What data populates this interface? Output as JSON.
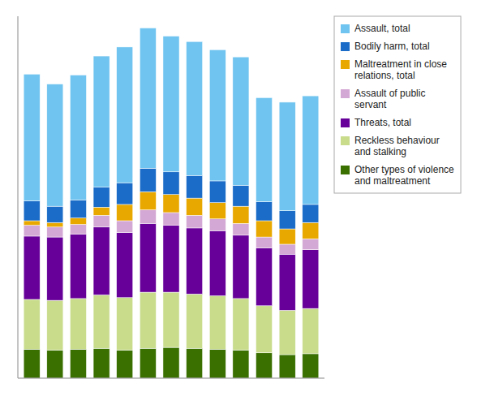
{
  "chart_data": {
    "type": "bar",
    "stacked": true,
    "categories": [
      null,
      null,
      null,
      null,
      null,
      null,
      null,
      null,
      null,
      null,
      null,
      null,
      null
    ],
    "series": [
      {
        "name": "Other types of violence\nand maltreatment",
        "color": "#3a7000",
        "values": [
          3200,
          3100,
          3200,
          3300,
          3100,
          3300,
          3400,
          3300,
          3200,
          3100,
          2800,
          2600,
          2700
        ]
      },
      {
        "name": "Reckless behaviour\nand stalking",
        "color": "#c8dc8c",
        "values": [
          5500,
          5500,
          5600,
          5900,
          5800,
          6200,
          6100,
          6000,
          5900,
          5700,
          5200,
          4900,
          5000
        ]
      },
      {
        "name": "Threats, total",
        "color": "#660099",
        "values": [
          7000,
          7000,
          7100,
          7500,
          7200,
          7600,
          7400,
          7300,
          7200,
          7000,
          6400,
          6200,
          6500
        ]
      },
      {
        "name": "Assault of public\nservant",
        "color": "#d4a8d4",
        "values": [
          1200,
          1100,
          1100,
          1300,
          1300,
          1500,
          1400,
          1400,
          1300,
          1300,
          1200,
          1100,
          1200
        ]
      },
      {
        "name": "Maltreatment in close\nrelations, total",
        "color": "#e8a800",
        "values": [
          500,
          500,
          700,
          900,
          1800,
          2000,
          2000,
          1900,
          1800,
          1900,
          1800,
          1700,
          1800
        ]
      },
      {
        "name": "Bodily harm, total",
        "color": "#1a6cc8",
        "values": [
          2200,
          1800,
          2000,
          2200,
          2400,
          2600,
          2500,
          2500,
          2400,
          2300,
          2100,
          2000,
          2000
        ]
      },
      {
        "name": "Assault, total",
        "color": "#70c4f0",
        "values": [
          14000,
          13500,
          13800,
          14500,
          15000,
          15500,
          15000,
          14800,
          14500,
          14200,
          11500,
          12000,
          12000
        ]
      }
    ],
    "ylim": [
      0,
      40000
    ],
    "yticks": [],
    "grid": false,
    "tick_labels": false,
    "legend": "right"
  }
}
